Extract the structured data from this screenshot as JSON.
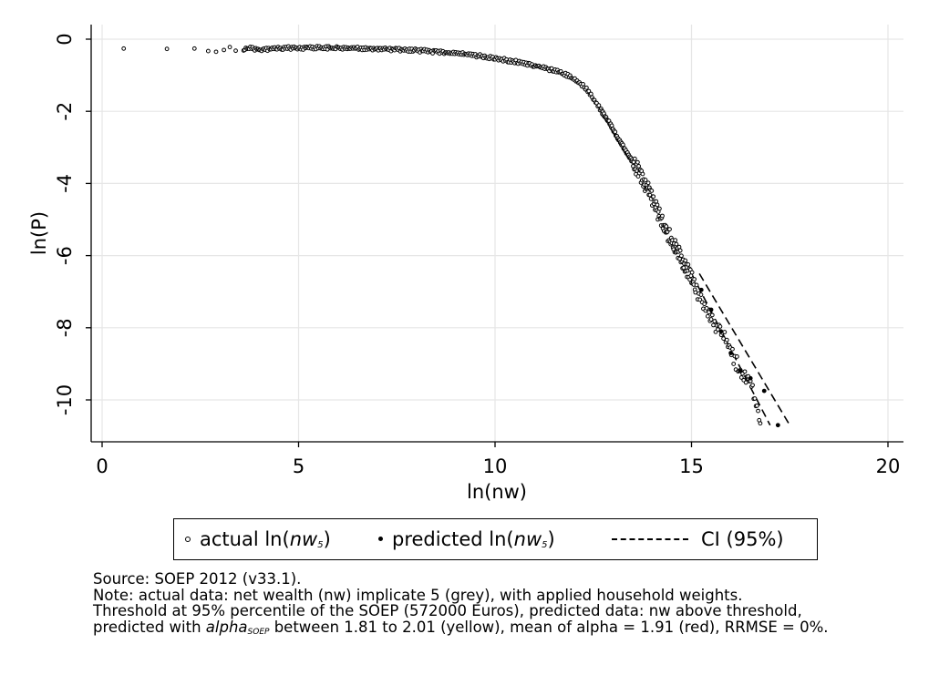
{
  "chart_data": {
    "type": "scatter",
    "xlabel": "ln(nw)",
    "ylabel": "ln(P)",
    "xlim": [
      0,
      20
    ],
    "ylim": [
      -10.8,
      0.3
    ],
    "x_ticks": [
      0,
      5,
      10,
      15,
      20
    ],
    "y_ticks": [
      0,
      -2,
      -4,
      -6,
      -8,
      -10
    ],
    "grid": true,
    "legend_placement": "bottom",
    "series": [
      {
        "name": "actual ln(nw5)",
        "marker": "hollow-circle",
        "color": "#000000",
        "points": [
          [
            0.55,
            -0.26
          ],
          [
            1.65,
            -0.27
          ],
          [
            2.35,
            -0.26
          ],
          [
            2.7,
            -0.33
          ],
          [
            2.9,
            -0.35
          ],
          [
            3.1,
            -0.3
          ],
          [
            3.25,
            -0.22
          ],
          [
            3.4,
            -0.32
          ],
          [
            3.6,
            -0.28
          ],
          [
            3.8,
            -0.24
          ],
          [
            4.0,
            -0.3
          ],
          [
            4.3,
            -0.27
          ],
          [
            4.6,
            -0.25
          ],
          [
            5.0,
            -0.24
          ],
          [
            5.5,
            -0.24
          ],
          [
            6.0,
            -0.25
          ],
          [
            6.5,
            -0.26
          ],
          [
            7.0,
            -0.27
          ],
          [
            7.5,
            -0.29
          ],
          [
            8.0,
            -0.31
          ],
          [
            8.5,
            -0.35
          ],
          [
            9.0,
            -0.39
          ],
          [
            9.5,
            -0.45
          ],
          [
            10.0,
            -0.53
          ],
          [
            10.5,
            -0.62
          ],
          [
            11.0,
            -0.73
          ],
          [
            11.5,
            -0.87
          ],
          [
            12.0,
            -1.07
          ],
          [
            12.3,
            -1.35
          ],
          [
            12.5,
            -1.65
          ],
          [
            12.7,
            -1.98
          ],
          [
            12.9,
            -2.3
          ],
          [
            13.1,
            -2.7
          ],
          [
            13.3,
            -3.05
          ],
          [
            13.5,
            -3.4
          ],
          [
            13.7,
            -3.75
          ],
          [
            13.9,
            -4.2
          ],
          [
            14.1,
            -4.7
          ],
          [
            14.3,
            -5.2
          ],
          [
            14.5,
            -5.6
          ],
          [
            14.7,
            -6.0
          ],
          [
            14.9,
            -6.4
          ],
          [
            15.1,
            -6.9
          ],
          [
            15.3,
            -7.3
          ],
          [
            15.5,
            -7.7
          ],
          [
            15.7,
            -8.1
          ],
          [
            15.9,
            -8.4
          ],
          [
            16.1,
            -8.9
          ],
          [
            16.3,
            -9.3
          ],
          [
            16.5,
            -9.5
          ],
          [
            16.75,
            -10.65
          ]
        ]
      },
      {
        "name": "predicted ln(nw5)",
        "marker": "solid-dot",
        "color": "#000000",
        "points": [
          [
            15.25,
            -6.95
          ],
          [
            15.5,
            -7.5
          ],
          [
            15.75,
            -8.1
          ],
          [
            16.0,
            -8.7
          ],
          [
            16.25,
            -9.2
          ],
          [
            16.5,
            -9.4
          ],
          [
            16.85,
            -9.75
          ],
          [
            17.2,
            -10.7
          ]
        ]
      },
      {
        "name": "CI (95%)",
        "marker": "dashed-line",
        "color": "#000000",
        "lines": [
          [
            [
              15.0,
              -6.5
            ],
            [
              17.0,
              -10.7
            ]
          ],
          [
            [
              15.2,
              -6.5
            ],
            [
              17.5,
              -10.7
            ]
          ]
        ]
      }
    ]
  },
  "legend": {
    "actual_prefix": "actual ln(",
    "actual_var": "nw",
    "actual_sub": "5",
    "actual_suffix": ")",
    "predicted_prefix": "predicted ln(",
    "predicted_var": "nw",
    "predicted_sub": "5",
    "predicted_suffix": ")",
    "ci_label": "CI (95%)"
  },
  "notes": {
    "line1": "Source: SOEP 2012 (v33.1).",
    "line2": "Note: actual data: net wealth (nw) implicate 5 (grey), with applied household weights.",
    "line3": "Threshold at 95% percentile of the SOEP (572000 Euros), predicted data: nw above threshold,",
    "line4_pre": "predicted with ",
    "line4_alpha": "alpha",
    "line4_sub": "SOEP",
    "line4_post": " between 1.81 to 2.01 (yellow), mean of alpha = 1.91 (red), RRMSE = 0%."
  }
}
